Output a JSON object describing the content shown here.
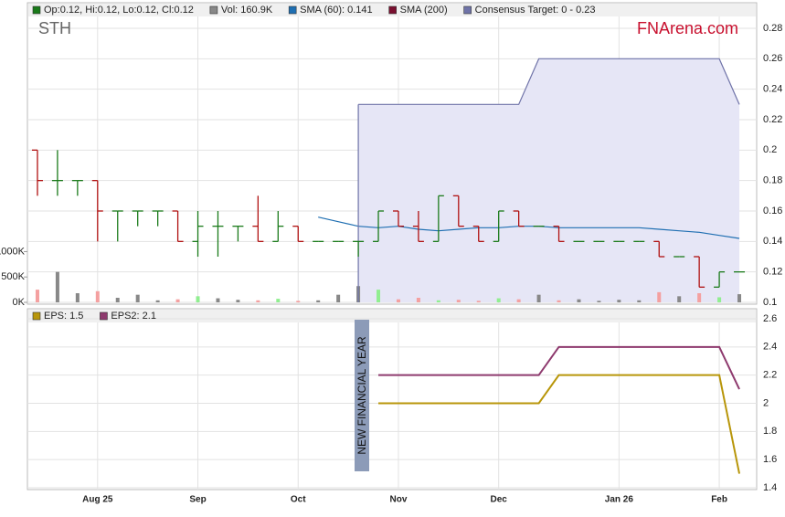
{
  "chart_data": [
    {
      "type": "ohlc",
      "title": "STH",
      "source": "FNArena.com",
      "ohlc_legend": "Op:0.12, Hi:0.12, Lo:0.12, Cl:0.12",
      "categories": [
        null,
        null,
        null,
        "Aug 25",
        null,
        null,
        null,
        null,
        "Sep",
        null,
        null,
        null,
        null,
        "Oct",
        null,
        null,
        null,
        null,
        "Nov",
        null,
        null,
        null,
        null,
        "Dec",
        null,
        null,
        null,
        null,
        null,
        "Jan 26",
        null,
        null,
        null,
        null,
        "Feb",
        null
      ],
      "open": [
        0.2,
        0.18,
        0.18,
        0.18,
        0.16,
        0.16,
        0.16,
        0.16,
        0.14,
        0.15,
        0.15,
        0.15,
        0.14,
        0.15,
        0.14,
        0.14,
        0.14,
        0.14,
        0.16,
        0.15,
        0.14,
        0.17,
        0.15,
        0.14,
        0.16,
        0.15,
        0.15,
        0.14,
        0.14,
        0.14,
        0.14,
        0.14,
        0.13,
        0.13,
        0.11,
        0.12
      ],
      "high": [
        0.2,
        0.2,
        0.18,
        0.18,
        0.16,
        0.16,
        0.16,
        0.16,
        0.16,
        0.16,
        0.15,
        0.17,
        0.16,
        0.15,
        0.14,
        0.14,
        0.14,
        0.16,
        0.16,
        0.16,
        0.17,
        0.17,
        0.15,
        0.16,
        0.16,
        0.15,
        0.15,
        0.14,
        0.14,
        0.14,
        0.14,
        0.14,
        0.13,
        0.13,
        0.12,
        0.12
      ],
      "low": [
        0.17,
        0.17,
        0.17,
        0.14,
        0.14,
        0.15,
        0.15,
        0.14,
        0.13,
        0.13,
        0.14,
        0.14,
        0.14,
        0.14,
        0.14,
        0.14,
        0.13,
        0.14,
        0.15,
        0.14,
        0.14,
        0.15,
        0.14,
        0.14,
        0.15,
        0.15,
        0.14,
        0.14,
        0.14,
        0.14,
        0.14,
        0.13,
        0.13,
        0.11,
        0.11,
        0.12
      ],
      "close": [
        0.18,
        0.18,
        0.18,
        0.16,
        0.16,
        0.16,
        0.16,
        0.14,
        0.15,
        0.15,
        0.15,
        0.14,
        0.15,
        0.14,
        0.14,
        0.14,
        0.14,
        0.16,
        0.15,
        0.14,
        0.17,
        0.15,
        0.14,
        0.16,
        0.15,
        0.15,
        0.14,
        0.14,
        0.14,
        0.14,
        0.14,
        0.13,
        0.13,
        0.11,
        0.12,
        0.12
      ],
      "up_color": "#1a7a1a",
      "down_color": "#b01010",
      "series": [
        {
          "name": "Vol: 160.9K",
          "type": "bar",
          "axis": "y2",
          "color": "#888888",
          "up_color": "#90ee90",
          "down_color": "#f4a0a0",
          "values": [
            250000,
            600000,
            180000,
            220000,
            90000,
            150000,
            40000,
            60000,
            120000,
            80000,
            50000,
            40000,
            70000,
            30000,
            40000,
            150000,
            320000,
            250000,
            60000,
            90000,
            40000,
            50000,
            30000,
            80000,
            60000,
            150000,
            40000,
            60000,
            30000,
            50000,
            40000,
            200000,
            120000,
            180000,
            100000,
            160900
          ]
        },
        {
          "name": "SMA (60): 0.141",
          "type": "line",
          "color": "#1f6fb2",
          "values": [
            null,
            null,
            null,
            null,
            null,
            null,
            null,
            null,
            null,
            null,
            null,
            null,
            null,
            null,
            0.156,
            0.153,
            0.15,
            0.149,
            0.15,
            0.148,
            0.147,
            0.148,
            0.149,
            0.149,
            0.15,
            0.15,
            0.149,
            0.149,
            0.149,
            0.149,
            0.149,
            0.148,
            0.147,
            0.146,
            0.144,
            0.142
          ]
        },
        {
          "name": "SMA (200)",
          "type": "line",
          "color": "#7a1030",
          "values": [
            null,
            null,
            null,
            null,
            null,
            null,
            null,
            null,
            null,
            null,
            null,
            null,
            null,
            null,
            null,
            null,
            null,
            null,
            null,
            null,
            null,
            null,
            null,
            null,
            null,
            null,
            null,
            null,
            null,
            null,
            null,
            null,
            null,
            null,
            null,
            null
          ]
        },
        {
          "name": "Consensus Target: 0 - 0.23",
          "type": "area",
          "color": "#6f73a8",
          "fill": "#e6e6f6",
          "values": [
            null,
            null,
            null,
            null,
            null,
            null,
            null,
            null,
            null,
            null,
            null,
            null,
            null,
            null,
            null,
            null,
            0.23,
            0.23,
            0.23,
            0.23,
            0.23,
            0.23,
            0.23,
            0.23,
            0.23,
            0.26,
            0.26,
            0.26,
            0.26,
            0.26,
            0.26,
            0.26,
            0.26,
            0.26,
            0.26,
            0.23
          ]
        }
      ],
      "ylim": [
        0.1,
        0.28
      ],
      "yticks": [
        0.1,
        0.12,
        0.14,
        0.16,
        0.18,
        0.2,
        0.22,
        0.24,
        0.26,
        0.28
      ],
      "y2lim": [
        0,
        5400000
      ],
      "y2ticks": [
        {
          "value": 0,
          "label": "0K"
        },
        {
          "value": 500000,
          "label": "500K"
        },
        {
          "value": 1000000,
          "label": "1000K"
        }
      ],
      "grid": true
    },
    {
      "type": "line",
      "annotation": "NEW FINANCIAL YEAR",
      "series": [
        {
          "name": "EPS: 1.5",
          "color": "#b8960a",
          "values": [
            null,
            null,
            null,
            null,
            null,
            null,
            null,
            null,
            null,
            null,
            null,
            null,
            null,
            null,
            null,
            null,
            null,
            2.0,
            2.0,
            2.0,
            2.0,
            2.0,
            2.0,
            2.0,
            2.0,
            2.0,
            2.2,
            2.2,
            2.2,
            2.2,
            2.2,
            2.2,
            2.2,
            2.2,
            2.2,
            1.5
          ]
        },
        {
          "name": "EPS2: 2.1",
          "color": "#8e3a6e",
          "values": [
            null,
            null,
            null,
            null,
            null,
            null,
            null,
            null,
            null,
            null,
            null,
            null,
            null,
            null,
            null,
            null,
            null,
            2.2,
            2.2,
            2.2,
            2.2,
            2.2,
            2.2,
            2.2,
            2.2,
            2.2,
            2.4,
            2.4,
            2.4,
            2.4,
            2.4,
            2.4,
            2.4,
            2.4,
            2.4,
            2.1
          ]
        }
      ],
      "ylim": [
        1.4,
        2.6
      ],
      "yticks": [
        1.4,
        1.6,
        1.8,
        2.0,
        2.2,
        2.4,
        2.6
      ],
      "grid": true
    }
  ]
}
